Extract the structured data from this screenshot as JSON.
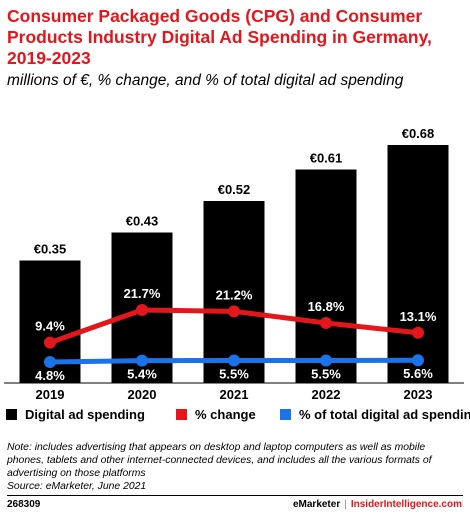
{
  "header": {
    "title": "Consumer Packaged Goods (CPG) and Consumer Products Industry Digital Ad Spending in Germany, 2019-2023",
    "subtitle": "millions of €, % change, and % of total digital ad spending"
  },
  "chart_data": {
    "type": "bar",
    "categories": [
      "2019",
      "2020",
      "2021",
      "2022",
      "2023"
    ],
    "series": [
      {
        "name": "Digital ad spending",
        "type": "bar",
        "values": [
          0.35,
          0.43,
          0.52,
          0.61,
          0.68
        ],
        "labels": [
          "€0.35",
          "€0.43",
          "€0.52",
          "€0.61",
          "€0.68"
        ],
        "color": "#000000"
      },
      {
        "name": "% change",
        "type": "line",
        "values": [
          9.4,
          21.7,
          21.2,
          16.8,
          13.1
        ],
        "labels": [
          "9.4%",
          "21.7%",
          "21.2%",
          "16.8%",
          "13.1%"
        ],
        "color": "#e3161c"
      },
      {
        "name": "% of total digital ad spending",
        "type": "line",
        "values": [
          4.8,
          5.4,
          5.5,
          5.5,
          5.6
        ],
        "labels": [
          "4.8%",
          "5.4%",
          "5.5%",
          "5.5%",
          "5.6%"
        ],
        "color": "#1a73e8"
      }
    ],
    "legend_position": "bottom",
    "grid": false
  },
  "footnote": {
    "note": "Note: includes advertising that appears on desktop and laptop computers as well as mobile phones, tablets and other internet-connected devices, and includes all the various formats of advertising on those platforms",
    "source": "Source: eMarketer, June 2021"
  },
  "footer": {
    "chart_id": "268309",
    "brand1": "eMarketer",
    "separator": "|",
    "brand2": "InsiderIntelligence.com"
  }
}
